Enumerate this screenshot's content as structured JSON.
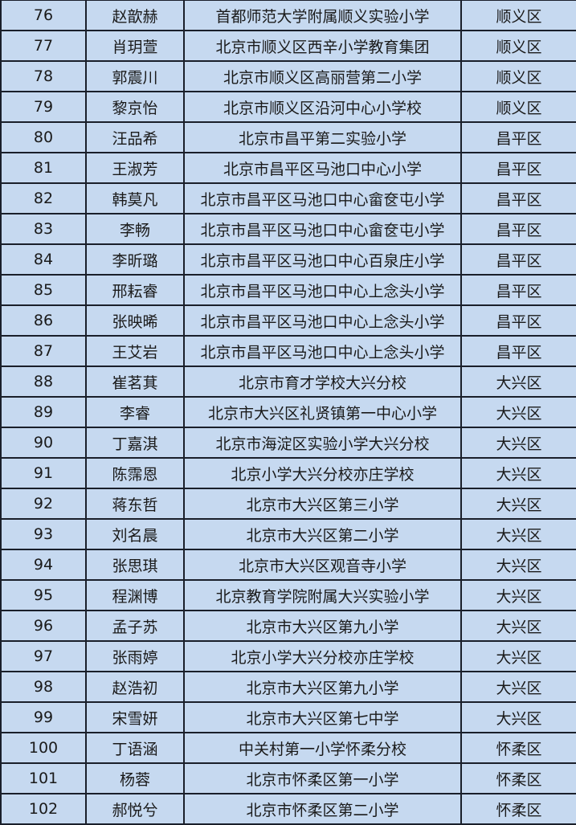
{
  "table": {
    "rows": [
      {
        "no": "76",
        "name": "赵歆赫",
        "school": "首都师范大学附属顺义实验小学",
        "district": "顺义区"
      },
      {
        "no": "77",
        "name": "肖玥萱",
        "school": "北京市顺义区西辛小学教育集团",
        "district": "顺义区"
      },
      {
        "no": "78",
        "name": "郭震川",
        "school": "北京市顺义区高丽营第二小学",
        "district": "顺义区"
      },
      {
        "no": "79",
        "name": "黎京怡",
        "school": "北京市顺义区沿河中心小学校",
        "district": "顺义区"
      },
      {
        "no": "80",
        "name": "汪品希",
        "school": "北京市昌平第二实验小学",
        "district": "昌平区"
      },
      {
        "no": "81",
        "name": "王淑芳",
        "school": "北京市昌平区马池口中心小学",
        "district": "昌平区"
      },
      {
        "no": "82",
        "name": "韩莫凡",
        "school": "北京市昌平区马池口中心畲奁屯小学",
        "district": "昌平区"
      },
      {
        "no": "83",
        "name": "李畅",
        "school": "北京市昌平区马池口中心畲奁屯小学",
        "district": "昌平区"
      },
      {
        "no": "84",
        "name": "李昕璐",
        "school": "北京市昌平区马池口中心百泉庄小学",
        "district": "昌平区"
      },
      {
        "no": "85",
        "name": "邢耘睿",
        "school": "北京市昌平区马池口中心上念头小学",
        "district": "昌平区"
      },
      {
        "no": "86",
        "name": "张映晞",
        "school": "北京市昌平区马池口中心上念头小学",
        "district": "昌平区"
      },
      {
        "no": "87",
        "name": "王艾岩",
        "school": "北京市昌平区马池口中心上念头小学",
        "district": "昌平区"
      },
      {
        "no": "88",
        "name": "崔茗萁",
        "school": "北京市育才学校大兴分校",
        "district": "大兴区"
      },
      {
        "no": "89",
        "name": "李睿",
        "school": "北京市大兴区礼贤镇第一中心小学",
        "district": "大兴区"
      },
      {
        "no": "90",
        "name": "丁嘉淇",
        "school": "北京市海淀区实验小学大兴分校",
        "district": "大兴区"
      },
      {
        "no": "91",
        "name": "陈霈恩",
        "school": "北京小学大兴分校亦庄学校",
        "district": "大兴区"
      },
      {
        "no": "92",
        "name": "蒋东哲",
        "school": "北京市大兴区第三小学",
        "district": "大兴区"
      },
      {
        "no": "93",
        "name": "刘名晨",
        "school": "北京市大兴区第二小学",
        "district": "大兴区"
      },
      {
        "no": "94",
        "name": "张思琪",
        "school": "北京市大兴区观音寺小学",
        "district": "大兴区"
      },
      {
        "no": "95",
        "name": "程渊博",
        "school": "北京教育学院附属大兴实验小学",
        "district": "大兴区"
      },
      {
        "no": "96",
        "name": "孟子苏",
        "school": "北京市大兴区第九小学",
        "district": "大兴区"
      },
      {
        "no": "97",
        "name": "张雨婷",
        "school": "北京小学大兴分校亦庄学校",
        "district": "大兴区"
      },
      {
        "no": "98",
        "name": "赵浩初",
        "school": "北京市大兴区第九小学",
        "district": "大兴区"
      },
      {
        "no": "99",
        "name": "宋雪妍",
        "school": "北京市大兴区第七中学",
        "district": "大兴区"
      },
      {
        "no": "100",
        "name": "丁语涵",
        "school": "中关村第一小学怀柔分校",
        "district": "怀柔区"
      },
      {
        "no": "101",
        "name": "杨蓉",
        "school": "北京市怀柔区第一小学",
        "district": "怀柔区"
      },
      {
        "no": "102",
        "name": "郝悦兮",
        "school": "北京市怀柔区第二小学",
        "district": "怀柔区"
      }
    ]
  },
  "colors": {
    "cell_background": "#c6d9f0",
    "border": "#1a1f2a",
    "text": "#1a1a1a"
  }
}
